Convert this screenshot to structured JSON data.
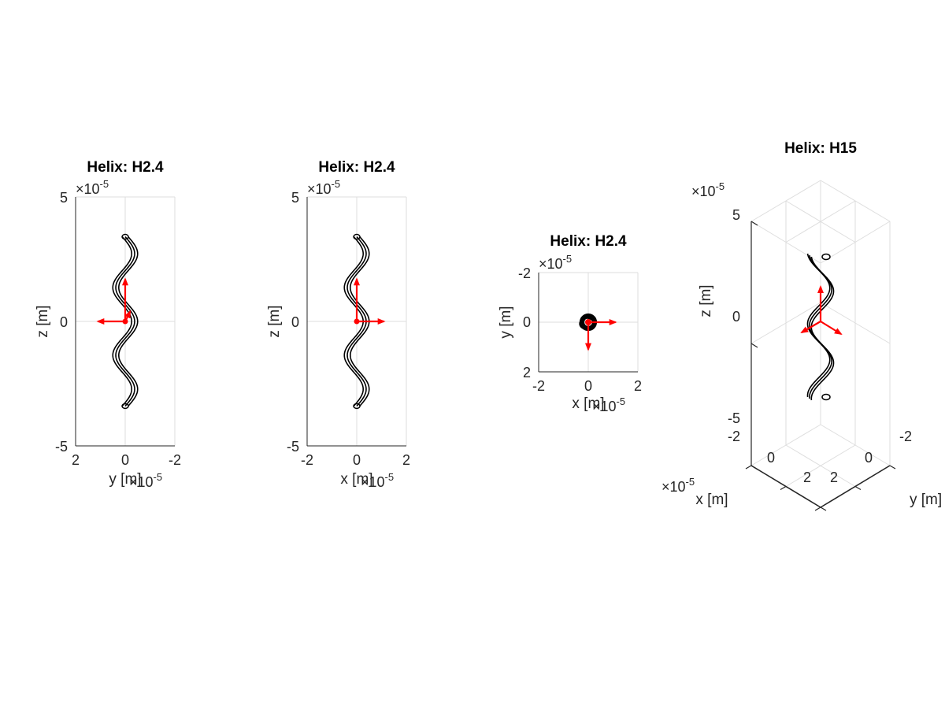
{
  "chart_data": [
    {
      "type": "line",
      "view": "side",
      "title": "Helix: H2.4",
      "xlabel": "y [m]",
      "ylabel": "z [m]",
      "xlim": [
        2,
        -2
      ],
      "ylim": [
        -5,
        5
      ],
      "xticks": [
        "2",
        "0",
        "-2"
      ],
      "yticks": [
        "5",
        "0",
        "-5"
      ],
      "x_exponent": "×10",
      "y_exponent": "×10",
      "exponent_power": "-5",
      "grid": true,
      "box": false,
      "helix": {
        "amplitude": 0.38,
        "z_range": [
          -3.4,
          3.4
        ],
        "turns": 2.5
      },
      "axes_arrows": [
        {
          "color": "#ff0000",
          "from": [
            0,
            0
          ],
          "to": [
            0,
            1.7
          ]
        },
        {
          "color": "#ff0000",
          "from": [
            0,
            0
          ],
          "to": [
            1.1,
            0
          ]
        },
        {
          "color": "#ff0000",
          "from": [
            0,
            0
          ],
          "to": [
            -0.2,
            0.4
          ]
        }
      ]
    },
    {
      "type": "line",
      "view": "front",
      "title": "Helix: H2.4",
      "xlabel": "x [m]",
      "ylabel": "z [m]",
      "xlim": [
        -2,
        2
      ],
      "ylim": [
        -5,
        5
      ],
      "xticks": [
        "-2",
        "0",
        "2"
      ],
      "yticks": [
        "5",
        "0",
        "-5"
      ],
      "x_exponent": "×10",
      "y_exponent": "×10",
      "exponent_power": "-5",
      "grid": true,
      "box": false,
      "helix": {
        "amplitude": 0.38,
        "z_range": [
          -3.4,
          3.4
        ],
        "turns": 2.5
      },
      "axes_arrows": [
        {
          "color": "#ff0000",
          "from": [
            0,
            0
          ],
          "to": [
            0,
            1.7
          ]
        },
        {
          "color": "#ff0000",
          "from": [
            0,
            0
          ],
          "to": [
            1.1,
            0
          ]
        }
      ]
    },
    {
      "type": "line",
      "view": "top",
      "title": "Helix: H2.4",
      "xlabel": "x [m]",
      "ylabel": "y [m]",
      "xlim": [
        -2,
        2
      ],
      "ylim": [
        -2,
        2
      ],
      "xticks": [
        "-2",
        "0",
        "2"
      ],
      "yticks": [
        "-2",
        "0",
        "2"
      ],
      "x_exponent": "×10",
      "y_exponent": "×10",
      "exponent_power": "-5",
      "grid": true,
      "box": false,
      "axes_arrows": [
        {
          "color": "#ff0000",
          "from": [
            0,
            0
          ],
          "to": [
            1.1,
            0
          ]
        },
        {
          "color": "#ff0000",
          "from": [
            0,
            0
          ],
          "to": [
            0,
            1.1
          ]
        }
      ]
    },
    {
      "type": "line",
      "view": "3d",
      "title": "Helix: H15",
      "xlabel": "x [m]",
      "ylabel": "y [m]",
      "zlabel": "z [m]",
      "xlim": [
        -2,
        2
      ],
      "ylim": [
        -2,
        2
      ],
      "zlim": [
        -5,
        5
      ],
      "xticks": [
        "-2",
        "0",
        "2"
      ],
      "yticks": [
        "-2",
        "0",
        "2"
      ],
      "zticks": [
        "5",
        "0",
        "-5"
      ],
      "x_exponent": "×10",
      "z_exponent": "×10",
      "exponent_power": "-5",
      "grid": true,
      "helix": {
        "z_range": [
          -3.2,
          3.2
        ],
        "turns": 2
      },
      "axes_arrows": [
        {
          "color": "#ff0000",
          "direction": "z"
        },
        {
          "color": "#ff0000",
          "direction": "x"
        },
        {
          "color": "#ff0000",
          "direction": "y"
        }
      ]
    }
  ]
}
